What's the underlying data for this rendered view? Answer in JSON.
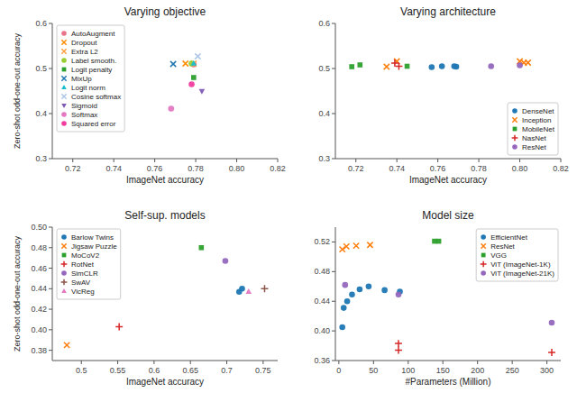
{
  "chart_data": [
    {
      "type": "scatter",
      "title": "Varying objective",
      "xlabel": "ImageNet accuracy",
      "ylabel": "Zero-shot odd-one-out accuracy",
      "xlim": [
        0.71,
        0.82
      ],
      "ylim": [
        0.3,
        0.6
      ],
      "xticks": [
        0.72,
        0.74,
        0.76,
        0.78,
        {
          "value": 0.8,
          "label": "0.80"
        },
        0.82
      ],
      "yticks": [
        0.3,
        0.4,
        0.5,
        0.6
      ],
      "grid": false,
      "legend": "upper left",
      "series": [
        {
          "name": "AutoAugment",
          "color": "#e8768a",
          "marker": "circle",
          "x": [
            0.779
          ],
          "values": [
            0.509
          ]
        },
        {
          "name": "Dropout",
          "color": "#ff8c00",
          "marker": "x",
          "x": [
            0.775
          ],
          "values": [
            0.511
          ]
        },
        {
          "name": "Extra L2",
          "color": "#ffa040",
          "marker": "x",
          "x": [
            0.779
          ],
          "values": [
            0.511
          ]
        },
        {
          "name": "Label smooth.",
          "color": "#9acd32",
          "marker": "circle",
          "x": [
            0.778
          ],
          "values": [
            0.511
          ]
        },
        {
          "name": "Logit penalty",
          "color": "#2ca02c",
          "marker": "square",
          "x": [
            0.779
          ],
          "values": [
            0.48
          ]
        },
        {
          "name": "MixUp",
          "color": "#1f77b4",
          "marker": "x",
          "x": [
            0.769
          ],
          "values": [
            0.51
          ]
        },
        {
          "name": "Logit norm",
          "color": "#17becf",
          "marker": "triangle-up",
          "x": [
            0.779
          ],
          "values": [
            0.511
          ]
        },
        {
          "name": "Cosine softmax",
          "color": "#aec7e8",
          "marker": "x",
          "x": [
            0.781
          ],
          "values": [
            0.527
          ]
        },
        {
          "name": "Sigmoid",
          "color": "#7f5ab5",
          "marker": "triangle-down",
          "x": [
            0.783
          ],
          "values": [
            0.45
          ]
        },
        {
          "name": "Softmax",
          "color": "#e377c2",
          "marker": "circle",
          "x": [
            0.768
          ],
          "values": [
            0.411
          ]
        },
        {
          "name": "Squared error",
          "color": "#f03c9e",
          "marker": "circle",
          "x": [
            0.778
          ],
          "values": [
            0.465
          ]
        }
      ]
    },
    {
      "type": "scatter",
      "title": "Varying architecture",
      "xlabel": "ImageNet accuracy",
      "xlim": [
        0.71,
        0.82
      ],
      "ylim": [
        0.3,
        0.6
      ],
      "xticks": [
        0.72,
        0.74,
        0.76,
        0.78,
        {
          "value": 0.8,
          "label": "0.80"
        },
        0.82
      ],
      "yticks": [
        0.3,
        0.4,
        0.5,
        0.6
      ],
      "grid": false,
      "legend": "lower right",
      "series": [
        {
          "name": "DenseNet",
          "color": "#1f77b4",
          "marker": "circle",
          "x": [
            0.757,
            0.762,
            0.768,
            0.769
          ],
          "values": [
            0.503,
            0.505,
            0.505,
            0.504
          ]
        },
        {
          "name": "Inception",
          "color": "#ff7f0e",
          "marker": "x",
          "x": [
            0.735,
            0.74,
            0.8,
            0.802,
            0.804
          ],
          "values": [
            0.504,
            0.516,
            0.516,
            0.513,
            0.513
          ]
        },
        {
          "name": "MobileNet",
          "color": "#2ca02c",
          "marker": "square",
          "x": [
            0.718,
            0.722,
            0.745
          ],
          "values": [
            0.504,
            0.508,
            0.505
          ]
        },
        {
          "name": "NasNet",
          "color": "#d62728",
          "marker": "plus",
          "x": [
            0.739,
            0.741
          ],
          "values": [
            0.512,
            0.505
          ]
        },
        {
          "name": "ResNet",
          "color": "#9467bd",
          "marker": "circle",
          "x": [
            0.786,
            0.8
          ],
          "values": [
            0.505,
            0.507
          ]
        }
      ]
    },
    {
      "type": "scatter",
      "title": "Self-sup. models",
      "xlabel": "ImageNet accuracy",
      "ylabel": "Zero-shot odd-one-out accuracy",
      "xlim": [
        0.46,
        0.77
      ],
      "ylim": [
        0.37,
        0.5
      ],
      "xticks": [
        0.5,
        0.55,
        0.6,
        0.65,
        0.7,
        0.75
      ],
      "yticks": [
        0.38,
        {
          "value": 0.4,
          "label": "0.40"
        },
        0.42,
        0.44,
        0.46,
        0.48,
        {
          "value": 0.5,
          "label": "0.50"
        }
      ],
      "grid": false,
      "legend": "upper left",
      "series": [
        {
          "name": "Barlow Twins",
          "color": "#1f77b4",
          "marker": "circle",
          "x": [
            0.717,
            0.721
          ],
          "values": [
            0.437,
            0.44
          ]
        },
        {
          "name": "Jigsaw Puzzle",
          "color": "#ff7f0e",
          "marker": "x",
          "x": [
            0.48
          ],
          "values": [
            0.385
          ]
        },
        {
          "name": "MoCoV2",
          "color": "#2ca02c",
          "marker": "square",
          "x": [
            0.665
          ],
          "values": [
            0.48
          ]
        },
        {
          "name": "RotNet",
          "color": "#d62728",
          "marker": "plus",
          "x": [
            0.552
          ],
          "values": [
            0.403
          ]
        },
        {
          "name": "SimCLR",
          "color": "#9467bd",
          "marker": "circle",
          "x": [
            0.698
          ],
          "values": [
            0.467
          ]
        },
        {
          "name": "SwAV",
          "color": "#8c564b",
          "marker": "plus",
          "x": [
            0.752
          ],
          "values": [
            0.44
          ]
        },
        {
          "name": "VicReg",
          "color": "#e377c2",
          "marker": "triangle-up",
          "x": [
            0.73
          ],
          "values": [
            0.437
          ]
        }
      ]
    },
    {
      "type": "scatter",
      "title": "Model size",
      "xlabel": "#Parameters (Million)",
      "xlim": [
        -5,
        320
      ],
      "ylim": [
        0.36,
        0.54
      ],
      "xticks": [
        0,
        50,
        100,
        150,
        200,
        250,
        300
      ],
      "yticks": [
        0.36,
        {
          "value": 0.4,
          "label": "0.40"
        },
        0.44,
        0.48,
        0.52
      ],
      "grid": false,
      "legend": "upper right",
      "series": [
        {
          "name": "EfficientNet",
          "color": "#1f77b4",
          "marker": "circle",
          "x": [
            5,
            7,
            12,
            19,
            30,
            43,
            66,
            88
          ],
          "values": [
            0.405,
            0.431,
            0.44,
            0.449,
            0.456,
            0.46,
            0.455,
            0.453
          ]
        },
        {
          "name": "ResNet",
          "color": "#ff7f0e",
          "marker": "x",
          "x": [
            5,
            11,
            25,
            45
          ],
          "values": [
            0.51,
            0.514,
            0.515,
            0.516
          ]
        },
        {
          "name": "VGG",
          "color": "#2ca02c",
          "marker": "square",
          "x": [
            138,
            144
          ],
          "values": [
            0.521,
            0.521
          ]
        },
        {
          "name": "ViT (ImageNet-1K)",
          "color": "#d62728",
          "marker": "plus",
          "x": [
            86,
            86,
            307
          ],
          "values": [
            0.383,
            0.374,
            0.371
          ]
        },
        {
          "name": "ViT (ImageNet-21K)",
          "color": "#9467bd",
          "marker": "circle",
          "x": [
            9,
            86,
            307
          ],
          "values": [
            0.462,
            0.449,
            0.411
          ]
        }
      ]
    }
  ]
}
